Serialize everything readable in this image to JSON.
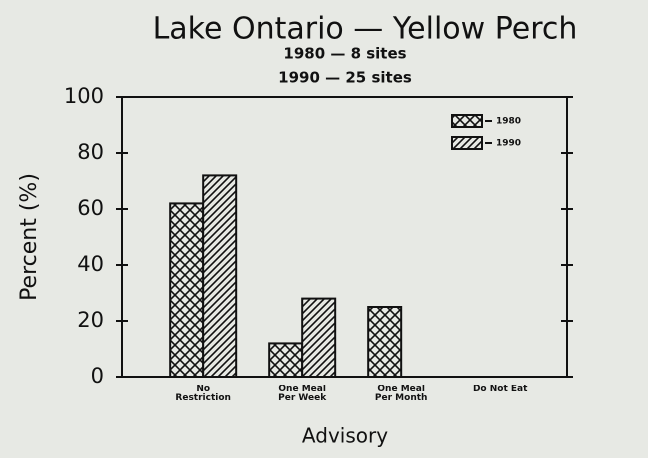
{
  "chart_data": {
    "type": "bar",
    "title": "Lake Ontario — Yellow Perch",
    "subtitle": [
      "1980 — 8 sites",
      "1990 — 25 sites"
    ],
    "xlabel": "Advisory",
    "ylabel": "Percent (%)",
    "categories": [
      "No Restriction",
      "One Meal Per Week",
      "One Meal Per Month",
      "Do Not Eat"
    ],
    "series": [
      {
        "name": "1980",
        "color": "#111111",
        "pattern": "crosshatch",
        "values": [
          62,
          12,
          25,
          0
        ]
      },
      {
        "name": "1990",
        "color": "#111111",
        "pattern": "diagonal",
        "values": [
          72,
          28,
          0,
          0
        ]
      }
    ],
    "ylim": [
      0,
      100
    ],
    "yticks": [
      0,
      20,
      40,
      60,
      80,
      100
    ],
    "grid": false,
    "legend": "upper right"
  }
}
